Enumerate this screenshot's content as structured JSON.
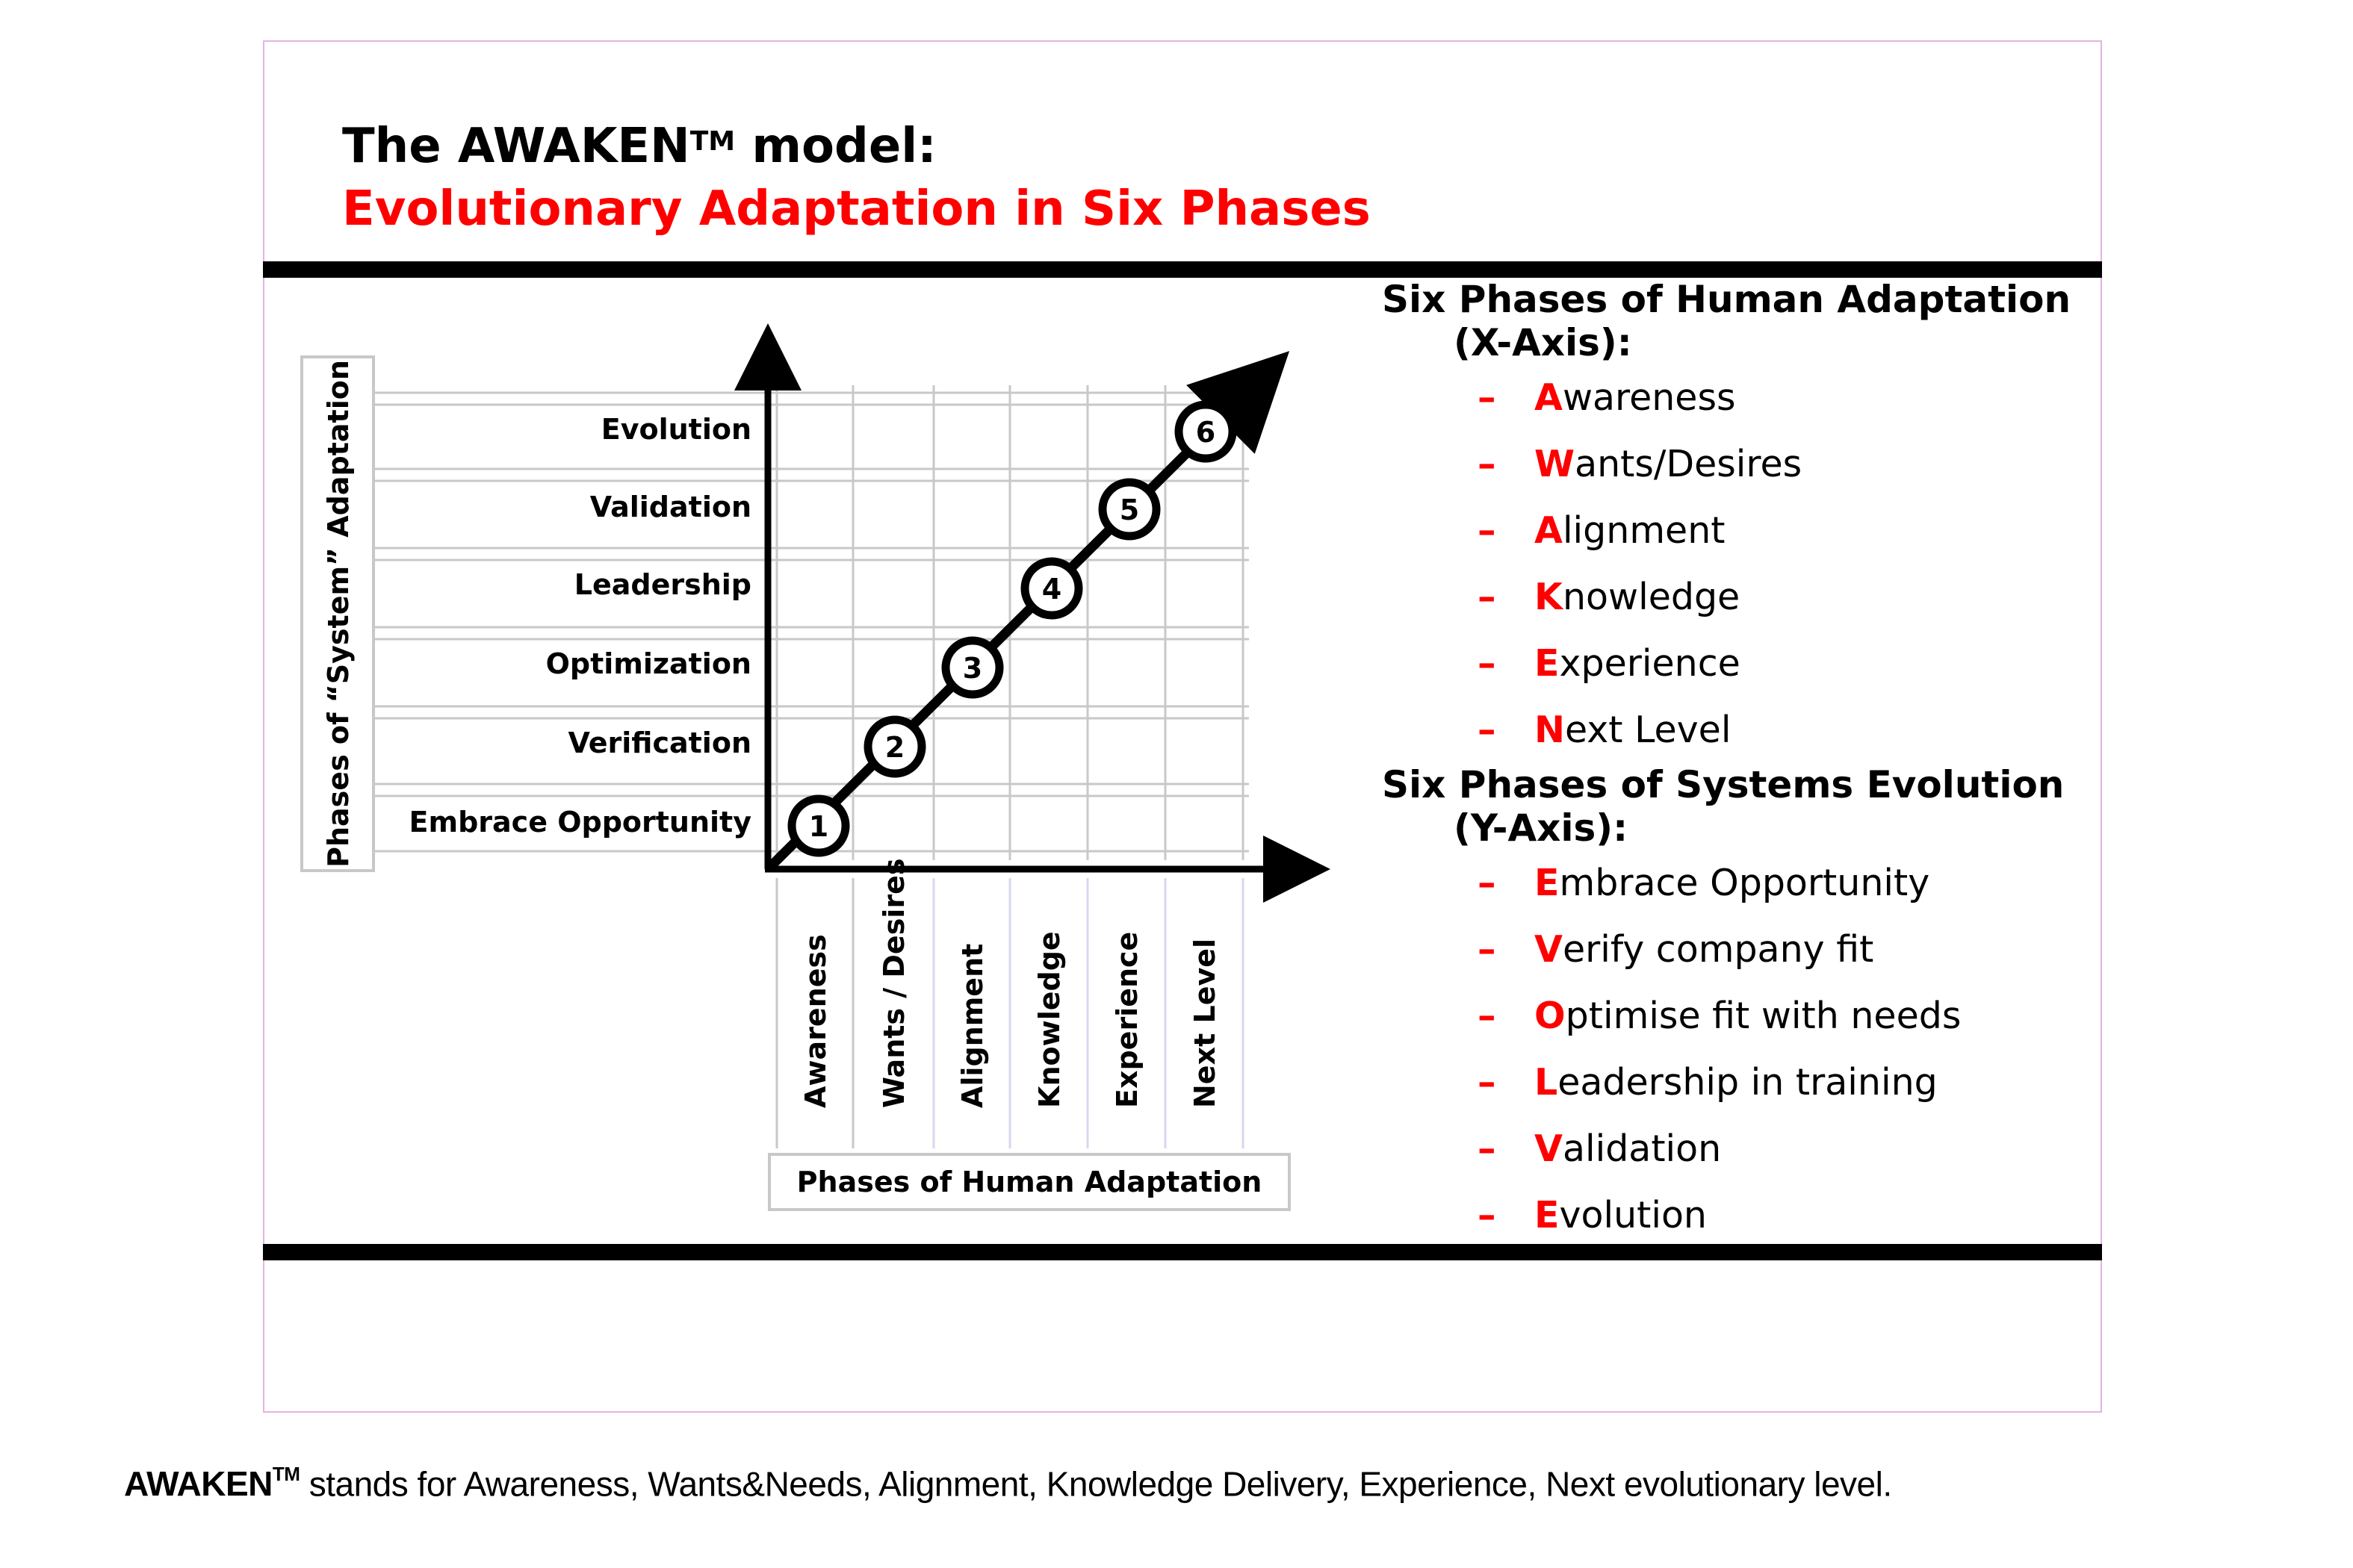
{
  "title": {
    "line1": "The AWAKEN",
    "line1_superscript": "TM",
    "line1_suffix": " model:",
    "line2": "Evolutionary Adaptation in Six Phases"
  },
  "diagram": {
    "y_axis_title": "Phases of “System” Adaptation",
    "x_axis_title": "Phases of Human Adaptation",
    "y_categories": [
      "Embrace Opportunity",
      "Verification",
      "Optimization",
      "Leadership",
      "Validation",
      "Evolution"
    ],
    "x_categories": [
      "Awareness",
      "Wants / Desires",
      "Alignment",
      "Knowledge",
      "Experience",
      "Next Level"
    ],
    "steps": [
      "1",
      "2",
      "3",
      "4",
      "5",
      "6"
    ]
  },
  "legend": {
    "x_heading": "Six Phases of Human Adaptation",
    "x_heading_sub": "(X-Axis):",
    "x_items": [
      {
        "dash": "–",
        "initial": "A",
        "rest": "wareness"
      },
      {
        "dash": "–",
        "initial": "W",
        "rest": "ants/Desires"
      },
      {
        "dash": "–",
        "initial": "A",
        "rest": "lignment"
      },
      {
        "dash": "–",
        "initial": "K",
        "rest": "nowledge"
      },
      {
        "dash": "–",
        "initial": "E",
        "rest": "xperience"
      },
      {
        "dash": "–",
        "initial": "N",
        "rest": "ext Level"
      }
    ],
    "y_heading": "Six Phases of Systems Evolution",
    "y_heading_sub": "(Y-Axis):",
    "y_items": [
      {
        "dash": "–",
        "initial": "E",
        "rest": "mbrace Opportunity"
      },
      {
        "dash": "–",
        "initial": "V",
        "rest": "erify company fit"
      },
      {
        "dash": "–",
        "initial": "O",
        "rest": "ptimise fit with needs"
      },
      {
        "dash": "–",
        "initial": "L",
        "rest": "eadership in training"
      },
      {
        "dash": "–",
        "initial": "V",
        "rest": "alidation"
      },
      {
        "dash": "–",
        "initial": "E",
        "rest": "volution"
      }
    ]
  },
  "caption": {
    "brand": "AWAKEN",
    "brand_superscript": "TM",
    "text": " stands for Awareness, Wants&Needs, Alignment, Knowledge Delivery, Experience, Next evolutionary level."
  },
  "colors": {
    "accent": "#ff0000",
    "grid": "#c8c8c8",
    "axis_label_box": "#c8c8c8",
    "slide_border": "#e2b3e2"
  }
}
